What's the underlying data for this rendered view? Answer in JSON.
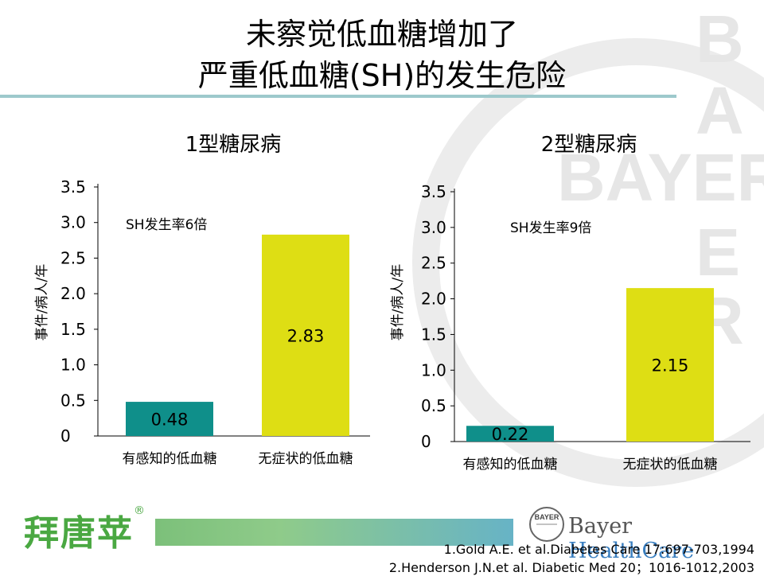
{
  "title": {
    "line1": "未察觉低血糖增加了",
    "line2": "严重低血糖(SH)的发生危险"
  },
  "watermark": {
    "text": "BAYER",
    "color": "#e6e6e6"
  },
  "chart_data": [
    {
      "type": "bar",
      "title": "1型糖尿病",
      "ylabel": "事件/病人/年",
      "annotation": "SH发生率6倍",
      "ylim": [
        0,
        3.5
      ],
      "yticks": [
        "0",
        "0.5",
        "1.0",
        "1.5",
        "2.0",
        "2.5",
        "3.0",
        "3.5"
      ],
      "categories": [
        "有感知的低血糖",
        "无症状的低血糖"
      ],
      "values": [
        0.48,
        2.83
      ],
      "value_labels": [
        "0.48",
        "2.83"
      ],
      "colors": [
        "#0f8f8a",
        "#dede14"
      ]
    },
    {
      "type": "bar",
      "title": "2型糖尿病",
      "ylabel": "事件/病人/年",
      "annotation": "SH发生率9倍",
      "ylim": [
        0,
        3.5
      ],
      "yticks": [
        "0",
        "0.5",
        "1.0",
        "1.5",
        "2.0",
        "2.5",
        "3.0",
        "3.5"
      ],
      "categories": [
        "有感知的低血糖",
        "无症状的低血糖"
      ],
      "values": [
        0.22,
        2.15
      ],
      "value_labels": [
        "0.22",
        "2.15"
      ],
      "colors": [
        "#0f8f8a",
        "#dede14"
      ]
    }
  ],
  "footer": {
    "brand_cn": "拜唐苹",
    "brand_mark": "®",
    "bayer_logo_text": "BAYER",
    "company_part1": "Bayer",
    "company_part2": "HealthCare",
    "brand_green": "#4aa842",
    "healthcare_blue": "#3a7fc0"
  },
  "references": [
    "1.Gold A.E. et al.Diabetes Care 17:697-703,1994",
    "2.Henderson J.N.et al. Diabetic Med 20；1016-1012,2003"
  ]
}
